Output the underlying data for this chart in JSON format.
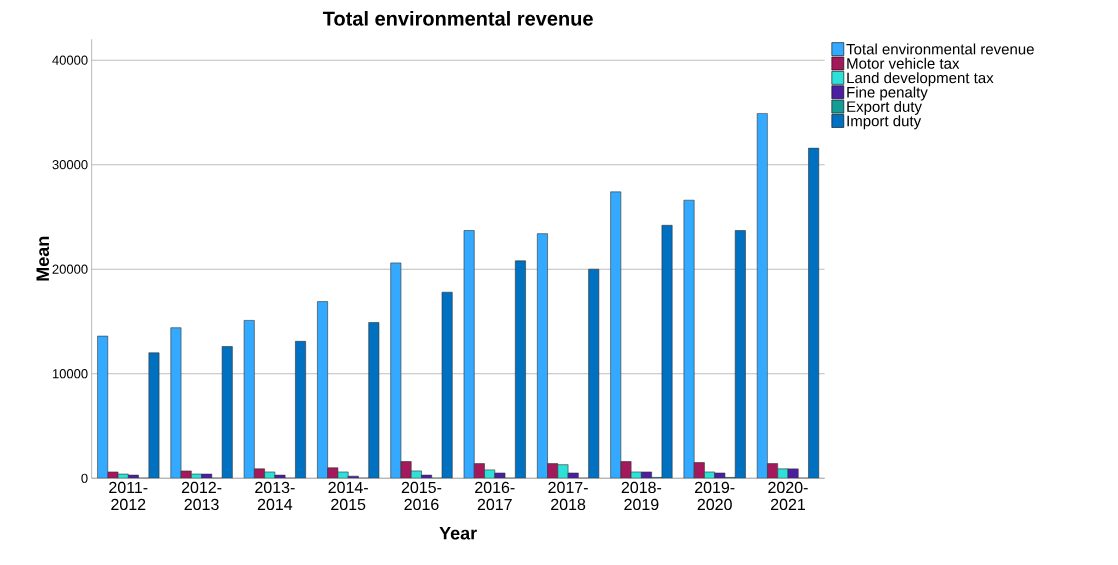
{
  "chart_data": {
    "type": "bar",
    "title": "Total environmental revenue",
    "xlabel": "Year",
    "ylabel": "Mean",
    "categories": [
      "2011-2012",
      "2012-2013",
      "2013-2014",
      "2014-2015",
      "2015-2016",
      "2016-2017",
      "2017-2018",
      "2018-2019",
      "2019-2020",
      "2020-2021"
    ],
    "series": [
      {
        "name": "Total environmental revenue",
        "color": "#33aaff",
        "values": [
          13600,
          14400,
          15100,
          16900,
          20600,
          23700,
          23400,
          27400,
          26600,
          34900
        ]
      },
      {
        "name": "Motor vehicle tax",
        "color": "#a3195b",
        "values": [
          600,
          700,
          900,
          1000,
          1600,
          1400,
          1400,
          1600,
          1500,
          1400
        ]
      },
      {
        "name": "Land development tax",
        "color": "#2ee0d8",
        "values": [
          400,
          400,
          600,
          600,
          700,
          800,
          1300,
          600,
          600,
          900
        ]
      },
      {
        "name": "Fine penalty",
        "color": "#4b1fa0",
        "values": [
          300,
          400,
          300,
          200,
          300,
          500,
          500,
          600,
          500,
          900
        ]
      },
      {
        "name": "Export duty",
        "color": "#169c96",
        "values": [
          0,
          0,
          0,
          0,
          0,
          0,
          0,
          100,
          100,
          0
        ]
      },
      {
        "name": "Import duty",
        "color": "#0070c0",
        "values": [
          12000,
          12600,
          13100,
          14900,
          17800,
          20800,
          20000,
          24200,
          23700,
          31600
        ]
      }
    ],
    "ylim": [
      0,
      42000
    ],
    "yticks": [
      0,
      10000,
      20000,
      30000,
      40000
    ],
    "grid": "y",
    "legend": "top right"
  }
}
